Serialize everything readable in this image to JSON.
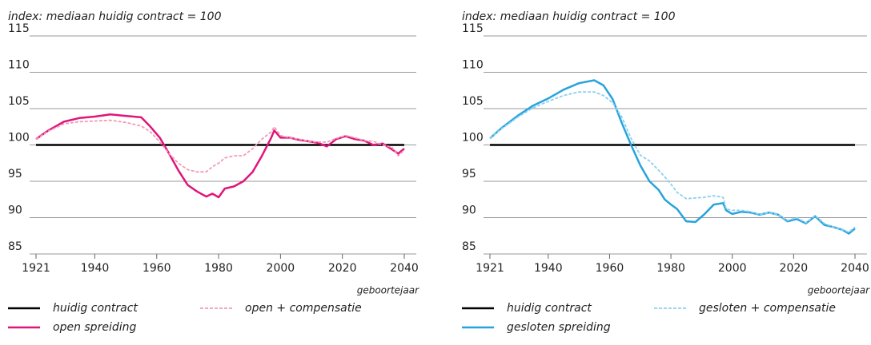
{
  "chart_data": [
    {
      "type": "line",
      "subtitle": "index: mediaan huidig contract = 100",
      "xlabel": "geboortejaar",
      "x": [
        1921,
        1925,
        1930,
        1935,
        1940,
        1945,
        1950,
        1955,
        1958,
        1961,
        1964,
        1967,
        1970,
        1973,
        1976,
        1978,
        1980,
        1982,
        1985,
        1988,
        1991,
        1994,
        1997,
        1998,
        2000,
        2003,
        2006,
        2009,
        2012,
        2015,
        2018,
        2021,
        2024,
        2027,
        2030,
        2033,
        2036,
        2038,
        2040
      ],
      "series": [
        {
          "name": "huidig contract",
          "color": "#000000",
          "dashed": false,
          "values": [
            100,
            100,
            100,
            100,
            100,
            100,
            100,
            100,
            100,
            100,
            100,
            100,
            100,
            100,
            100,
            100,
            100,
            100,
            100,
            100,
            100,
            100,
            100,
            100,
            100,
            100,
            100,
            100,
            100,
            100,
            100,
            100,
            100,
            100,
            100,
            100,
            100,
            100,
            100
          ]
        },
        {
          "name": "open spreiding",
          "color": "#e0157a",
          "dashed": false,
          "values": [
            100.8,
            102.0,
            103.2,
            103.7,
            103.9,
            104.2,
            104.0,
            103.8,
            102.5,
            101.0,
            98.8,
            96.5,
            94.5,
            93.6,
            92.9,
            93.3,
            92.8,
            94.0,
            94.3,
            95.0,
            96.3,
            98.5,
            101.0,
            102.0,
            101.0,
            101.0,
            100.7,
            100.5,
            100.3,
            99.8,
            100.8,
            101.2,
            100.8,
            100.6,
            100.0,
            100.2,
            99.4,
            98.8,
            99.5
          ]
        },
        {
          "name": "open + compensatie",
          "color": "#f29bb8",
          "dashed": true,
          "values": [
            100.8,
            101.9,
            102.9,
            103.2,
            103.3,
            103.4,
            103.1,
            102.6,
            101.8,
            100.4,
            98.8,
            97.5,
            96.6,
            96.3,
            96.3,
            97.0,
            97.5,
            98.2,
            98.5,
            98.5,
            99.5,
            100.8,
            101.8,
            102.5,
            101.3,
            101.0,
            100.8,
            100.5,
            100.4,
            100.4,
            100.9,
            101.3,
            101.0,
            100.6,
            100.5,
            100.0,
            99.7,
            98.5,
            99.3
          ]
        }
      ],
      "xlim": [
        1921,
        2040
      ],
      "ylim": [
        85,
        115
      ],
      "xticks": [
        1921,
        1940,
        1960,
        1980,
        2000,
        2020,
        2040
      ],
      "yticks": [
        85,
        90,
        95,
        100,
        105,
        110,
        115
      ],
      "grid": true
    },
    {
      "type": "line",
      "subtitle": "index: mediaan huidig contract = 100",
      "xlabel": "geboortejaar",
      "x": [
        1921,
        1925,
        1930,
        1935,
        1940,
        1945,
        1950,
        1955,
        1958,
        1961,
        1964,
        1967,
        1970,
        1973,
        1976,
        1978,
        1980,
        1982,
        1985,
        1988,
        1991,
        1994,
        1997,
        1998,
        2000,
        2003,
        2006,
        2009,
        2012,
        2015,
        2018,
        2021,
        2024,
        2027,
        2030,
        2033,
        2036,
        2038,
        2040
      ],
      "series": [
        {
          "name": "huidig contract",
          "color": "#000000",
          "dashed": false,
          "values": [
            100,
            100,
            100,
            100,
            100,
            100,
            100,
            100,
            100,
            100,
            100,
            100,
            100,
            100,
            100,
            100,
            100,
            100,
            100,
            100,
            100,
            100,
            100,
            100,
            100,
            100,
            100,
            100,
            100,
            100,
            100,
            100,
            100,
            100,
            100,
            100,
            100,
            100,
            100
          ]
        },
        {
          "name": "gesloten spreiding",
          "color": "#27a3dd",
          "dashed": false,
          "values": [
            100.9,
            102.4,
            104.0,
            105.4,
            106.4,
            107.6,
            108.5,
            108.9,
            108.2,
            106.3,
            103.0,
            100.0,
            97.2,
            95.0,
            93.8,
            92.5,
            91.8,
            91.2,
            89.5,
            89.4,
            90.5,
            91.8,
            92.0,
            91.0,
            90.5,
            90.8,
            90.7,
            90.4,
            90.7,
            90.4,
            89.5,
            89.8,
            89.2,
            90.2,
            89.0,
            88.7,
            88.3,
            87.8,
            88.5
          ]
        },
        {
          "name": "gesloten + compensatie",
          "color": "#8dd0ee",
          "dashed": true,
          "values": [
            100.9,
            102.3,
            103.8,
            105.1,
            106.0,
            106.8,
            107.3,
            107.3,
            106.8,
            105.8,
            103.8,
            100.9,
            98.6,
            97.8,
            96.5,
            95.6,
            94.6,
            93.5,
            92.6,
            92.7,
            92.8,
            93.0,
            92.8,
            91.2,
            91.0,
            91.0,
            90.8,
            90.4,
            90.7,
            90.4,
            89.6,
            90.0,
            89.3,
            90.3,
            89.2,
            88.7,
            88.3,
            88.0,
            88.7
          ]
        }
      ],
      "xlim": [
        1921,
        2040
      ],
      "ylim": [
        85,
        115
      ],
      "xticks": [
        1921,
        1940,
        1960,
        1980,
        2000,
        2020,
        2040
      ],
      "yticks": [
        85,
        90,
        95,
        100,
        105,
        110,
        115
      ],
      "grid": true
    }
  ]
}
